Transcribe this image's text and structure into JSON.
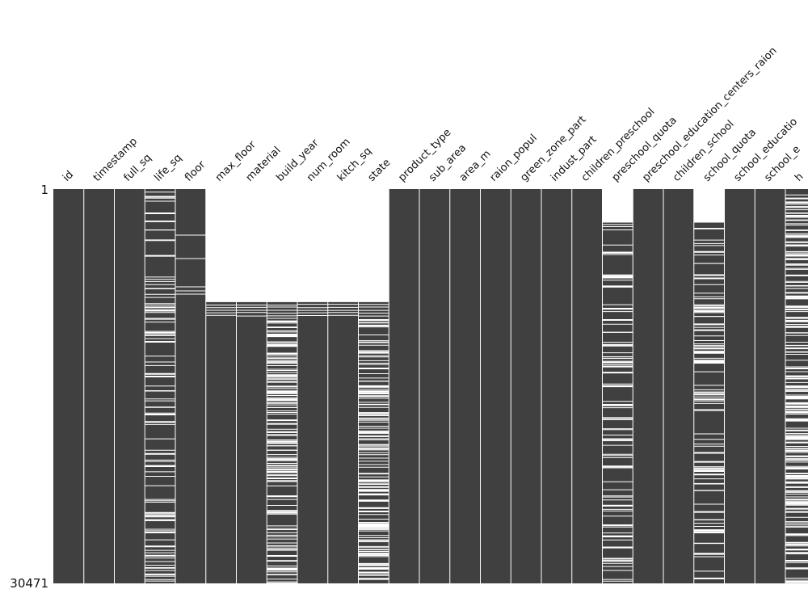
{
  "chart_data": {
    "type": "heatmap",
    "title": "",
    "xlabel": "",
    "ylabel": "",
    "row_range": [
      1,
      30471
    ],
    "row_tick_labels": [
      "1",
      "30471"
    ],
    "colors": {
      "present": "#404040",
      "missing": "#ffffff"
    },
    "columns": [
      {
        "name": "id",
        "missing_start": 0,
        "missing_density": 0,
        "missing_pattern": "none"
      },
      {
        "name": "timestamp",
        "missing_start": 0,
        "missing_density": 0,
        "missing_pattern": "none"
      },
      {
        "name": "full_sq",
        "missing_start": 0,
        "missing_density": 0,
        "missing_pattern": "none"
      },
      {
        "name": "life_sq",
        "missing_start": 0,
        "missing_density": 0.21,
        "missing_pattern": "scattered"
      },
      {
        "name": "floor",
        "missing_start": 0,
        "missing_density": 0.005,
        "missing_pattern": "sparse-top"
      },
      {
        "name": "max_floor",
        "missing_start": 0.285,
        "missing_density": 0,
        "missing_pattern": "block-top"
      },
      {
        "name": "material",
        "missing_start": 0.285,
        "missing_density": 0,
        "missing_pattern": "block-top"
      },
      {
        "name": "build_year",
        "missing_start": 0.285,
        "missing_density": 0.45,
        "missing_pattern": "block-top-scattered"
      },
      {
        "name": "num_room",
        "missing_start": 0.285,
        "missing_density": 0,
        "missing_pattern": "block-top"
      },
      {
        "name": "kitch_sq",
        "missing_start": 0.285,
        "missing_density": 0,
        "missing_pattern": "block-top"
      },
      {
        "name": "state",
        "missing_start": 0.285,
        "missing_density": 0.44,
        "missing_pattern": "block-top-scattered"
      },
      {
        "name": "product_type",
        "missing_start": 0,
        "missing_density": 0,
        "missing_pattern": "none"
      },
      {
        "name": "sub_area",
        "missing_start": 0,
        "missing_density": 0,
        "missing_pattern": "none"
      },
      {
        "name": "area_m",
        "missing_start": 0,
        "missing_density": 0,
        "missing_pattern": "none"
      },
      {
        "name": "raion_popul",
        "missing_start": 0,
        "missing_density": 0,
        "missing_pattern": "none"
      },
      {
        "name": "green_zone_part",
        "missing_start": 0,
        "missing_density": 0,
        "missing_pattern": "none"
      },
      {
        "name": "indust_part",
        "missing_start": 0,
        "missing_density": 0,
        "missing_pattern": "none"
      },
      {
        "name": "children_preschool",
        "missing_start": 0,
        "missing_density": 0,
        "missing_pattern": "none"
      },
      {
        "name": "preschool_quota",
        "missing_start": 0.085,
        "missing_density": 0.22,
        "missing_pattern": "scattered-from-row"
      },
      {
        "name": "preschool_education_centers_raion",
        "missing_start": 0,
        "missing_density": 0,
        "missing_pattern": "none"
      },
      {
        "name": "children_school",
        "missing_start": 0,
        "missing_density": 0,
        "missing_pattern": "none"
      },
      {
        "name": "school_quota",
        "missing_start": 0.085,
        "missing_density": 0.22,
        "missing_pattern": "scattered-from-row"
      },
      {
        "name": "school_educatio",
        "missing_start": 0,
        "missing_density": 0,
        "missing_pattern": "none"
      },
      {
        "name": "school_e",
        "missing_start": 0,
        "missing_density": 0,
        "missing_pattern": "none"
      },
      {
        "name": "h",
        "missing_start": 0,
        "missing_density": 0.48,
        "missing_pattern": "scattered"
      }
    ]
  }
}
